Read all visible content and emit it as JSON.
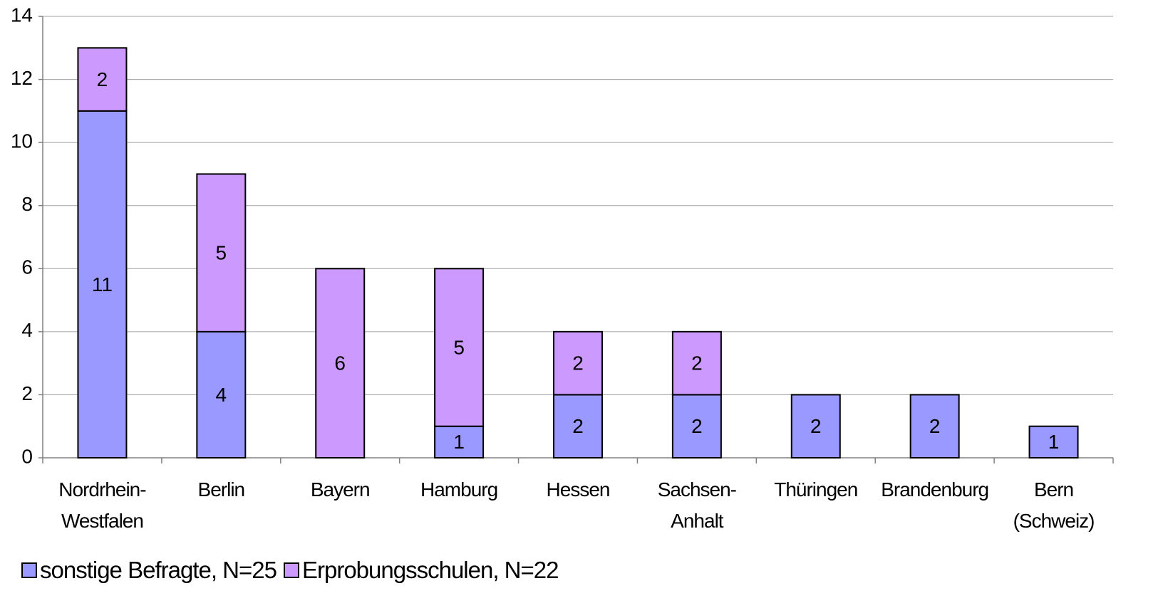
{
  "chart_data": {
    "type": "stacked_bar",
    "categories": [
      "Nordrhein-Westfalen",
      "Berlin",
      "Bayern",
      "Hamburg",
      "Hessen",
      "Sachsen-Anhalt",
      "Thüringen",
      "Brandenburg",
      "Bern (Schweiz)"
    ],
    "series": [
      {
        "name": "sonstige Befragte, N=25",
        "color": "#9999ff",
        "values": [
          11,
          4,
          0,
          1,
          2,
          2,
          2,
          2,
          1
        ]
      },
      {
        "name": "Erprobungsschulen, N=22",
        "color": "#cc99ff",
        "values": [
          2,
          5,
          6,
          5,
          2,
          2,
          0,
          0,
          0
        ]
      }
    ],
    "ylim": [
      0,
      14
    ],
    "yticks": [
      0,
      2,
      4,
      6,
      8,
      10,
      12,
      14
    ],
    "grid": true,
    "legend": "bottom-left"
  }
}
